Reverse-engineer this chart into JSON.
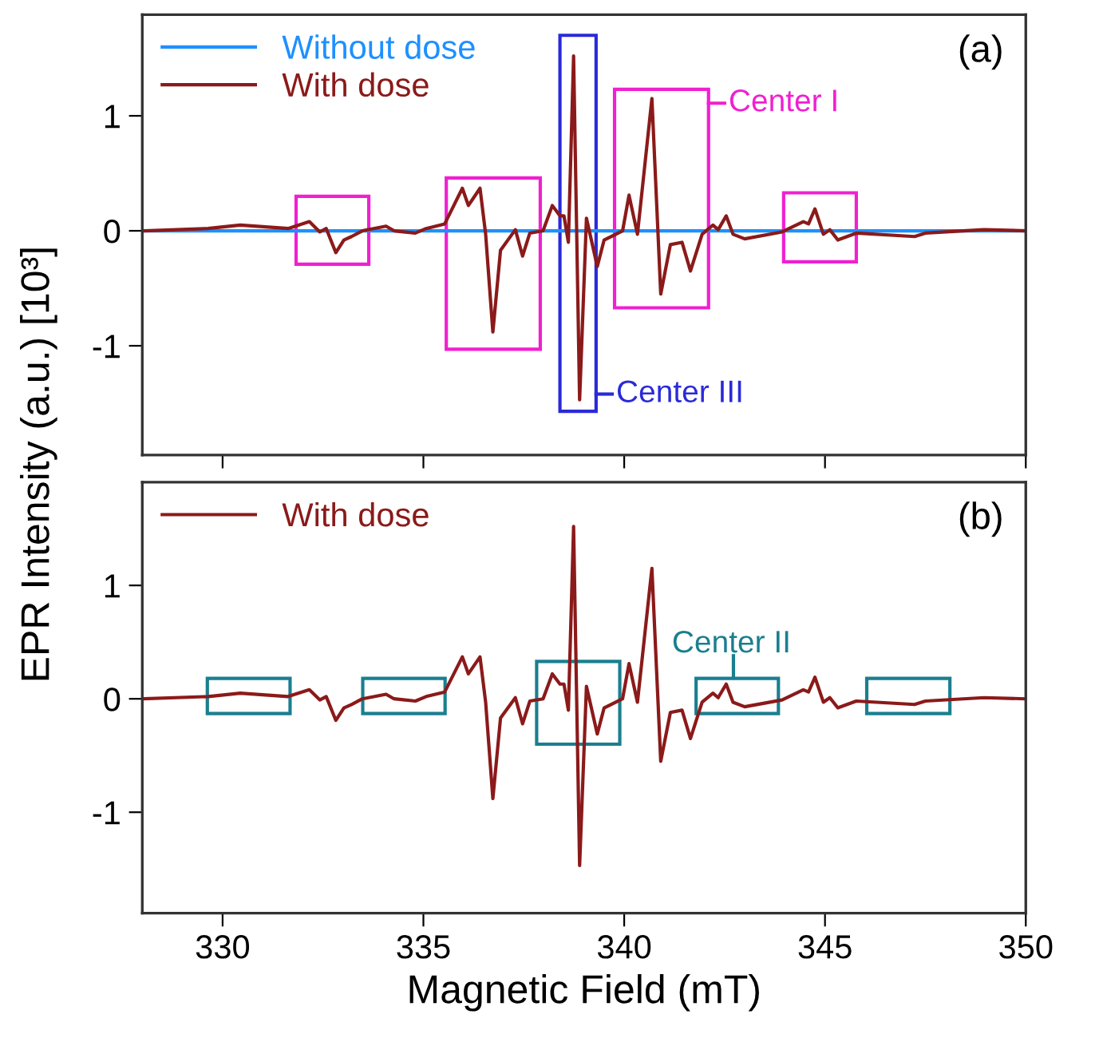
{
  "chart_data": [
    {
      "type": "line",
      "ylabel": "EPR Intensity (a.u.) [10³]",
      "xlim": [
        328,
        350
      ],
      "xticks": [
        330,
        335,
        340,
        345,
        350
      ],
      "ylim": [
        -1.95,
        1.88
      ],
      "yticks": [
        -1,
        0,
        1
      ],
      "tick_labels": "y",
      "legend": "top left",
      "grid": false,
      "annotations": [
        "(a)",
        "Center I",
        "Center III"
      ],
      "series": [
        {
          "name": "Without dose",
          "color": "#1e90ff",
          "x": [
            328,
            350
          ],
          "values": [
            0,
            0
          ]
        },
        {
          "name": "With dose",
          "color": "#8b1a1a",
          "x": [
            328.05,
            329.64,
            330.44,
            331.63,
            332.16,
            332.42,
            332.58,
            332.82,
            333.02,
            333.21,
            333.48,
            334.07,
            334.27,
            334.8,
            335.07,
            335.53,
            335.97,
            336.12,
            336.41,
            336.55,
            336.73,
            336.92,
            337.29,
            337.47,
            337.65,
            337.98,
            338.21,
            338.4,
            338.5,
            338.61,
            338.74,
            338.89,
            339.06,
            339.33,
            339.5,
            339.96,
            340.12,
            340.33,
            340.69,
            340.91,
            341.15,
            341.44,
            341.65,
            341.94,
            342.21,
            342.34,
            342.54,
            342.71,
            343.0,
            343.93,
            344.46,
            344.59,
            344.75,
            344.96,
            345.12,
            345.32,
            345.78,
            347.23,
            347.5,
            348.96,
            350
          ],
          "values": [
            0,
            0.02,
            0.05,
            0.02,
            0.08,
            -0.01,
            0.02,
            -0.19,
            -0.08,
            -0.05,
            0,
            0.04,
            0,
            -0.02,
            0.02,
            0.06,
            0.37,
            0.22,
            0.37,
            -0.03,
            -0.88,
            -0.17,
            0.01,
            -0.22,
            -0.02,
            0,
            0.22,
            0.13,
            0.13,
            -0.1,
            1.52,
            -1.47,
            0.11,
            -0.31,
            -0.08,
            0,
            0.31,
            -0.03,
            1.15,
            -0.55,
            -0.12,
            -0.1,
            -0.35,
            -0.03,
            0.05,
            0.01,
            0.13,
            -0.03,
            -0.07,
            -0.01,
            0.08,
            0.06,
            0.19,
            -0.03,
            0.01,
            -0.08,
            -0.02,
            -0.05,
            -0.02,
            0.01,
            0
          ]
        }
      ]
    },
    {
      "type": "line",
      "xlabel": "Magnetic Field (mT)",
      "xlim": [
        328,
        350
      ],
      "xticks": [
        330,
        335,
        340,
        345,
        350
      ],
      "ylim": [
        -1.89,
        1.91
      ],
      "yticks": [
        -1,
        0,
        1
      ],
      "legend": "top left",
      "grid": false,
      "annotations": [
        "(b)",
        "Center II"
      ],
      "series": [
        {
          "name": "With dose",
          "color": "#8b1a1a",
          "x": [
            328.05,
            329.64,
            330.44,
            331.63,
            332.16,
            332.42,
            332.58,
            332.82,
            333.02,
            333.21,
            333.48,
            334.07,
            334.27,
            334.8,
            335.07,
            335.53,
            335.97,
            336.12,
            336.41,
            336.55,
            336.73,
            336.92,
            337.29,
            337.47,
            337.65,
            337.98,
            338.21,
            338.4,
            338.5,
            338.61,
            338.74,
            338.89,
            339.06,
            339.33,
            339.5,
            339.96,
            340.12,
            340.33,
            340.69,
            340.91,
            341.15,
            341.44,
            341.65,
            341.94,
            342.21,
            342.34,
            342.54,
            342.71,
            343.0,
            343.93,
            344.46,
            344.59,
            344.75,
            344.96,
            345.12,
            345.32,
            345.78,
            347.23,
            347.5,
            348.96,
            350
          ],
          "values": [
            0,
            0.02,
            0.05,
            0.02,
            0.08,
            -0.01,
            0.02,
            -0.19,
            -0.08,
            -0.05,
            0,
            0.04,
            0,
            -0.02,
            0.02,
            0.06,
            0.37,
            0.22,
            0.37,
            -0.03,
            -0.88,
            -0.17,
            0.01,
            -0.22,
            -0.02,
            0,
            0.22,
            0.13,
            0.13,
            -0.1,
            1.52,
            -1.47,
            0.11,
            -0.31,
            -0.08,
            0,
            0.31,
            -0.03,
            1.15,
            -0.55,
            -0.12,
            -0.1,
            -0.35,
            -0.03,
            0.05,
            0.01,
            0.13,
            -0.03,
            -0.07,
            -0.01,
            0.08,
            0.06,
            0.19,
            -0.03,
            0.01,
            -0.08,
            -0.02,
            -0.05,
            -0.02,
            0.01,
            0
          ]
        }
      ]
    }
  ]
}
